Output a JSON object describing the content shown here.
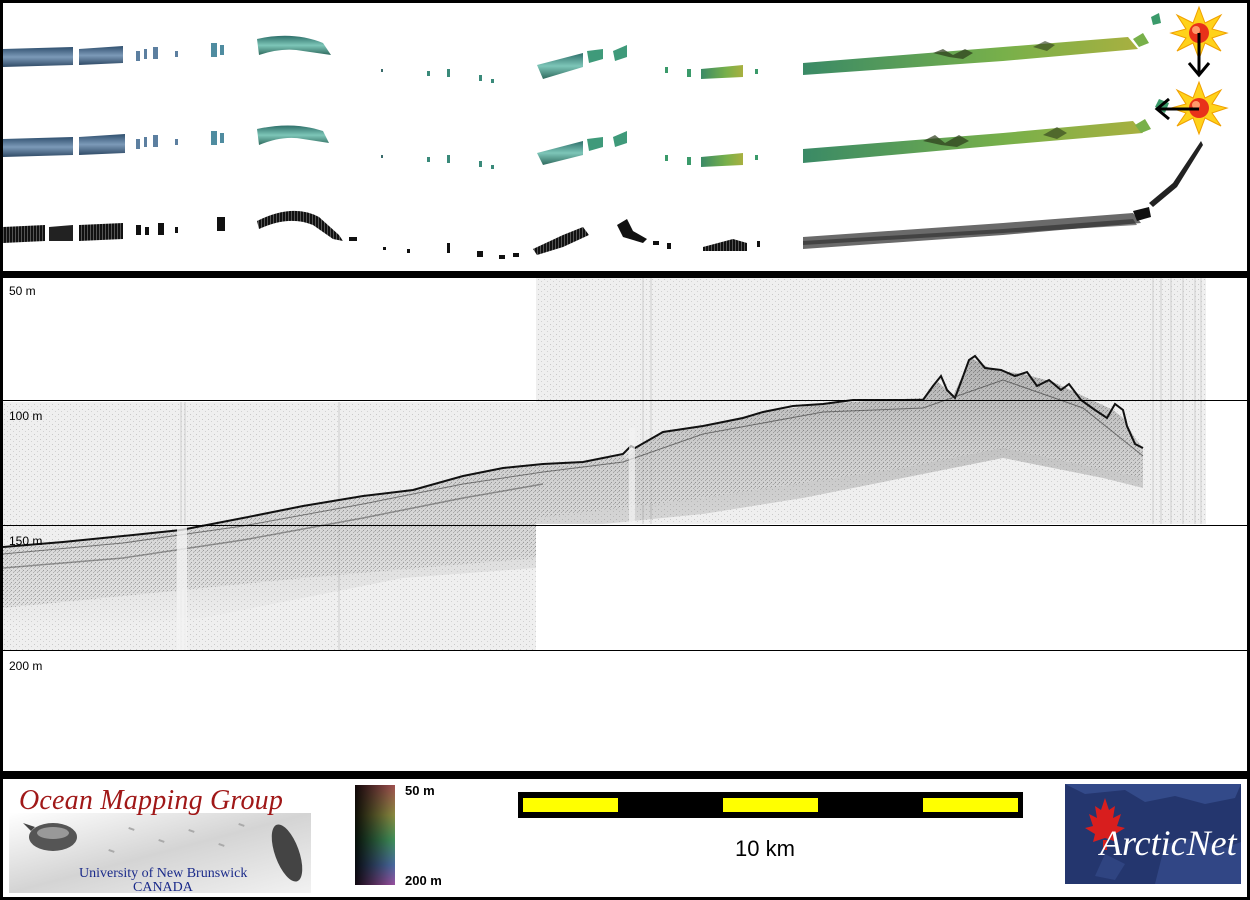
{
  "profile": {
    "depth_labels": [
      "50 m",
      "100 m",
      "150 m",
      "200 m"
    ]
  },
  "footer": {
    "omg_logo": {
      "title": "Ocean Mapping Group",
      "subtitle_line1": "University of New Brunswick",
      "subtitle_line2": "CANADA"
    },
    "colorbar": {
      "top_label": "50 m",
      "bottom_label": "200 m"
    },
    "scalebar": {
      "label": "10 km",
      "colors": [
        "#ffff00",
        "#000000"
      ]
    },
    "arcticnet_logo": {
      "text": "ArcticNet"
    }
  },
  "icons": {
    "sun": "sun-icon",
    "arrow_down": "arrow-down-icon",
    "arrow_left": "arrow-left-icon"
  },
  "colors": {
    "frame": "#000000",
    "swath_blue": "#4a6f90",
    "swath_teal": "#3f9a8a",
    "swath_green": "#6cae4e",
    "sun_yellow": "#ffd21a",
    "sun_red": "#e8321a",
    "omg_red": "#a01818",
    "omg_blue": "#1a2a8a",
    "arcticnet_blue": "#24366e"
  }
}
